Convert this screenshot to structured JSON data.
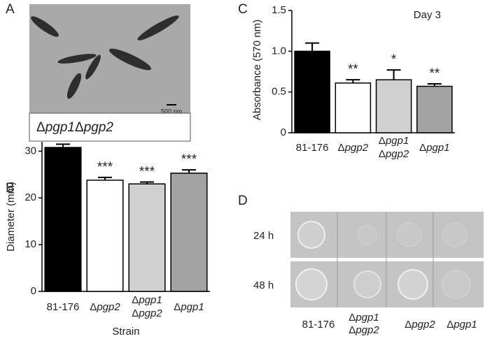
{
  "figure": {
    "micrograph": {
      "panel_label": "A",
      "scale_bar": "500 nm",
      "strain": "Δpgp1Δpgp2"
    },
    "plates": {
      "panel_label": "D",
      "rows": [
        "24 h",
        "48 h"
      ],
      "columns": [
        "81-176",
        "Δpgp1 Δpgp2",
        "Δpgp2",
        "Δpgp1"
      ]
    }
  },
  "chart_data": [
    {
      "type": "bar",
      "panel_label": "B",
      "y_label": "Diameter (mm)",
      "x_label": "Strain",
      "categories": [
        "81-176",
        "Δpgp2",
        "Δpgp1 Δpgp2",
        "Δpgp1"
      ],
      "values": [
        30.8,
        23.8,
        23.0,
        25.3
      ],
      "errors": [
        0.7,
        0.6,
        0.4,
        0.7
      ],
      "colors": [
        "#000000",
        "#ffffff",
        "#d0d0d0",
        "#a3a3a3"
      ],
      "value_labels": [
        null,
        "***",
        "***",
        "***"
      ],
      "ylim": [
        0,
        32
      ],
      "yticks": [
        0,
        10,
        20,
        30
      ]
    },
    {
      "type": "bar",
      "panel_label": "C",
      "y_label": "Absorbance (570 nm)",
      "annotation": "Day 3",
      "categories": [
        "81-176",
        "Δpgp2",
        "Δpgp1 Δpgp2",
        "Δpgp1"
      ],
      "values": [
        1.0,
        0.61,
        0.65,
        0.57
      ],
      "errors": [
        0.1,
        0.04,
        0.12,
        0.03
      ],
      "colors": [
        "#000000",
        "#ffffff",
        "#d0d0d0",
        "#a3a3a3"
      ],
      "value_labels": [
        null,
        "**",
        "*",
        "**"
      ],
      "ylim": [
        0,
        1.5
      ],
      "yticks": [
        0,
        0.5,
        {
          "value": 1,
          "label": "1.0"
        },
        1.5
      ]
    }
  ]
}
